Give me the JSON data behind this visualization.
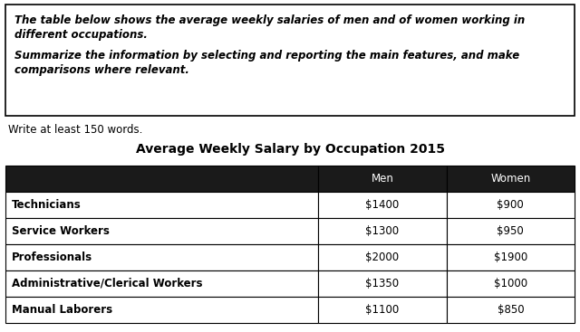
{
  "prompt_box_text_line1": "The table below shows the average weekly salaries of men and of women working in",
  "prompt_box_text_line2": "different occupations.",
  "prompt_box_text_line3": "Summarize the information by selecting and reporting the main features, and make",
  "prompt_box_text_line4": "comparisons where relevant.",
  "write_prompt": "Write at least 150 words.",
  "table_title": "Average Weekly Salary by Occupation 2015",
  "col_headers": [
    "Men",
    "Women"
  ],
  "occupations": [
    "Technicians",
    "Service Workers",
    "Professionals",
    "Administrative/Clerical Workers",
    "Manual Laborers"
  ],
  "men_salaries": [
    "$1400",
    "$1300",
    "$2000",
    "$1350",
    "$1100"
  ],
  "women_salaries": [
    "$900",
    "$950",
    "$1900",
    "$1000",
    "$850"
  ],
  "header_bg": "#1a1a1a",
  "header_text_color": "#ffffff",
  "row_bg": "#ffffff",
  "row_text_color": "#000000",
  "border_color": "#000000",
  "box_border_color": "#000000",
  "background_color": "#ffffff",
  "title_fontsize": 10,
  "body_fontsize": 8.5,
  "prompt_fontsize": 8.5
}
